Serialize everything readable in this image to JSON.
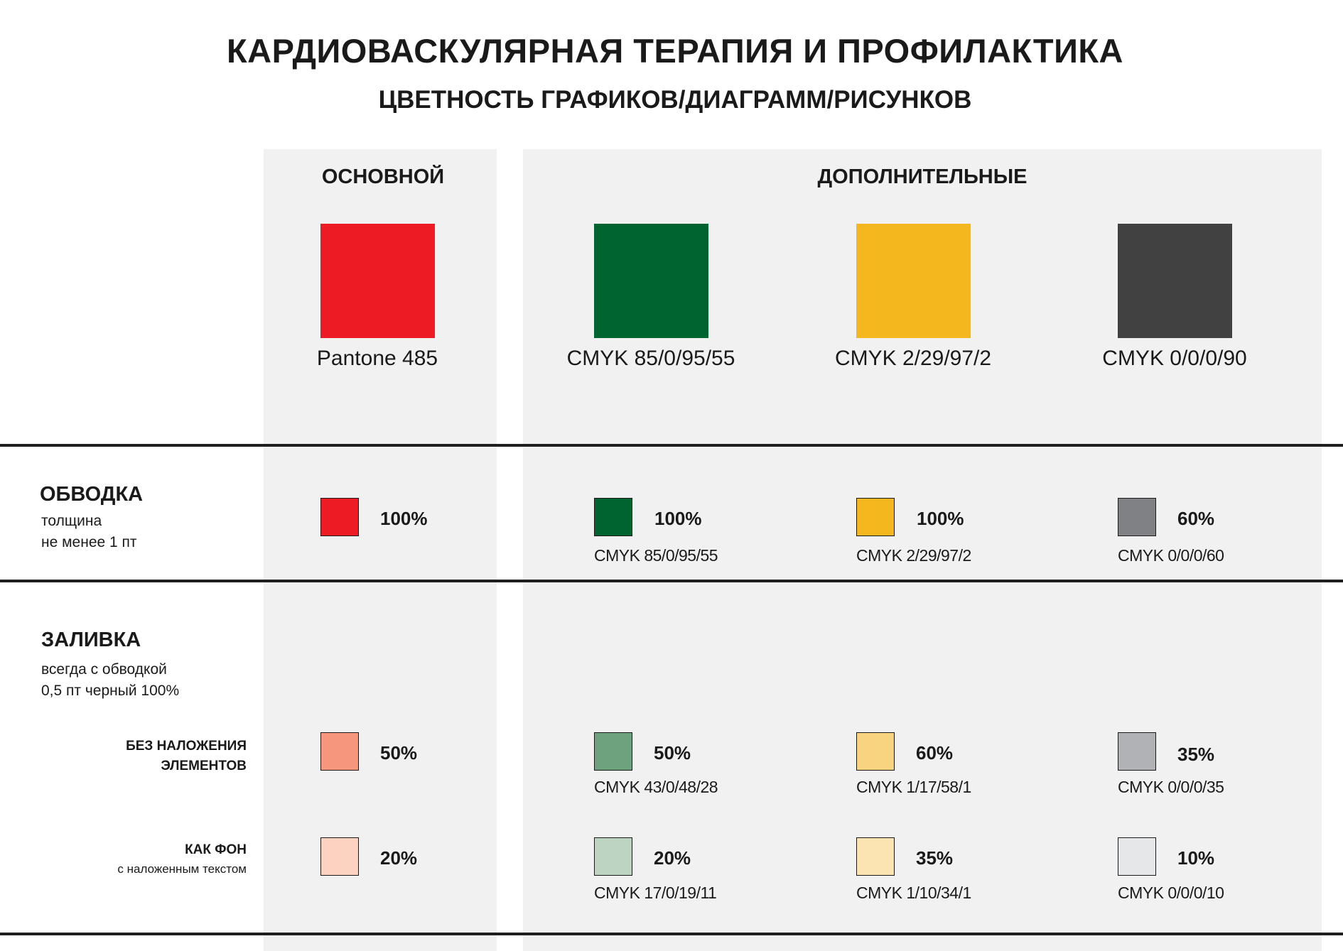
{
  "header": {
    "title": "КАРДИОВАСКУЛЯРНАЯ ТЕРАПИЯ И ПРОФИЛАКТИКА",
    "subtitle": "ЦВЕТНОСТЬ ГРАФИКОВ/ДИАГРАММ/РИСУНКОВ"
  },
  "columns": {
    "main_label": "ОСНОВНОЙ",
    "extra_label": "ДОПОЛНИТЕЛЬНЫЕ"
  },
  "base_colors": [
    {
      "label": "Pantone 485",
      "color": "#ed1c24"
    },
    {
      "label": "CMYK 85/0/95/55",
      "color": "#006430"
    },
    {
      "label": "CMYK 2/29/97/2",
      "color": "#f4b81e"
    },
    {
      "label": "CMYK 0/0/0/90",
      "color": "#414141"
    }
  ],
  "stroke": {
    "title": "ОБВОДКА",
    "note_line1": "толщина",
    "note_line2": "не менее 1 пт",
    "items": [
      {
        "pct": "100%",
        "cmyk": "",
        "color": "#ed1c24"
      },
      {
        "pct": "100%",
        "cmyk": "CMYK 85/0/95/55",
        "color": "#006430"
      },
      {
        "pct": "100%",
        "cmyk": "CMYK 2/29/97/2",
        "color": "#f4b81e"
      },
      {
        "pct": "60%",
        "cmyk": "CMYK 0/0/0/60",
        "color": "#808184"
      }
    ]
  },
  "fill": {
    "title": "ЗАЛИВКА",
    "note_line1": "всегда с обводкой",
    "note_line2": "0,5 пт черный 100%",
    "no_overlap": {
      "title_line1": "БЕЗ НАЛОЖЕНИЯ",
      "title_line2": "ЭЛЕМЕНТОВ",
      "items": [
        {
          "pct": "50%",
          "cmyk": "",
          "color": "#f6977d"
        },
        {
          "pct": "50%",
          "cmyk": "CMYK 43/0/48/28",
          "color": "#6ea17d"
        },
        {
          "pct": "60%",
          "cmyk": "CMYK 1/17/58/1",
          "color": "#f8d481"
        },
        {
          "pct": "35%",
          "cmyk": "CMYK 0/0/0/35",
          "color": "#b1b2b5"
        }
      ]
    },
    "as_background": {
      "title": "КАК ФОН",
      "note": "с наложенным текстом",
      "items": [
        {
          "pct": "20%",
          "cmyk": "",
          "color": "#fcd3c1"
        },
        {
          "pct": "20%",
          "cmyk": "CMYK 17/0/19/11",
          "color": "#bed4c2"
        },
        {
          "pct": "35%",
          "cmyk": "CMYK 1/10/34/1",
          "color": "#fbe4b2"
        },
        {
          "pct": "10%",
          "cmyk": "CMYK 0/0/0/10",
          "color": "#e6e7e8"
        }
      ]
    }
  }
}
